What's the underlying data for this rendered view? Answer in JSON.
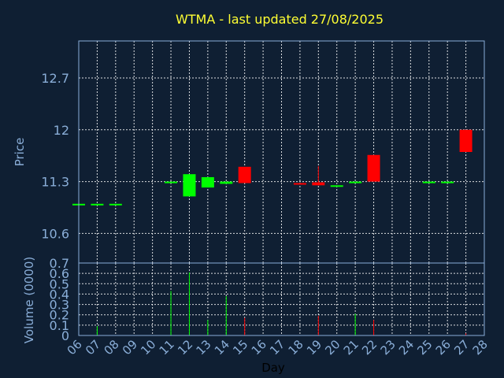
{
  "title": "WTMA - last updated 27/08/2025",
  "colors": {
    "background": "#0f1f33",
    "title": "#ffff33",
    "axis_text": "#8aaed8",
    "up": "#00ff00",
    "down": "#ff0000"
  },
  "chart_data": [
    {
      "type": "candlestick",
      "ylabel": "Price",
      "ylim": [
        10.2,
        13.2
      ],
      "yticks": [
        10.6,
        11.3,
        12,
        12.7
      ],
      "grid": true,
      "x_tick_labels": [
        "06",
        "07",
        "08",
        "09",
        "10",
        "11",
        "12",
        "13",
        "14",
        "15",
        "16",
        "17",
        "18",
        "19",
        "20",
        "21",
        "22",
        "23",
        "24",
        "25",
        "26",
        "27",
        "28"
      ],
      "candles": [
        {
          "day": "06",
          "open": 11.0,
          "high": 11.0,
          "low": 11.0,
          "close": 11.0
        },
        {
          "day": "07",
          "open": 11.0,
          "high": 11.0,
          "low": 11.0,
          "close": 11.0
        },
        {
          "day": "08",
          "open": 11.0,
          "high": 11.0,
          "low": 11.0,
          "close": 11.0
        },
        {
          "day": "11",
          "open": 11.3,
          "high": 11.3,
          "low": 11.3,
          "close": 11.3
        },
        {
          "day": "12",
          "open": 11.1,
          "high": 11.4,
          "low": 11.1,
          "close": 11.4
        },
        {
          "day": "13",
          "open": 11.22,
          "high": 11.36,
          "low": 11.22,
          "close": 11.36
        },
        {
          "day": "14",
          "open": 11.27,
          "high": 11.3,
          "low": 11.27,
          "close": 11.3
        },
        {
          "day": "15",
          "open": 11.5,
          "high": 11.5,
          "low": 11.28,
          "close": 11.28
        },
        {
          "day": "18",
          "open": 11.28,
          "high": 11.28,
          "low": 11.26,
          "close": 11.26
        },
        {
          "day": "19",
          "open": 11.29,
          "high": 11.51,
          "low": 11.25,
          "close": 11.25
        },
        {
          "day": "20",
          "open": 11.23,
          "high": 11.25,
          "low": 11.23,
          "close": 11.25
        },
        {
          "day": "21",
          "open": 11.29,
          "high": 11.3,
          "low": 11.29,
          "close": 11.3
        },
        {
          "day": "22",
          "open": 11.66,
          "high": 11.66,
          "low": 11.3,
          "close": 11.3
        },
        {
          "day": "25",
          "open": 11.3,
          "high": 11.3,
          "low": 11.3,
          "close": 11.3
        },
        {
          "day": "26",
          "open": 11.3,
          "high": 11.3,
          "low": 11.3,
          "close": 11.3
        },
        {
          "day": "27",
          "open": 12.0,
          "high": 12.0,
          "low": 11.7,
          "close": 11.7
        }
      ]
    },
    {
      "type": "bar",
      "ylabel": "Volume (0000)",
      "xlabel": "Day",
      "ylim": [
        0,
        0.7
      ],
      "yticks": [
        0,
        0.1,
        0.2,
        0.3,
        0.4,
        0.5,
        0.6,
        0.7
      ],
      "grid": true,
      "bars": [
        {
          "day": "07",
          "value": 0.09,
          "color": "up"
        },
        {
          "day": "11",
          "value": 0.43,
          "color": "up"
        },
        {
          "day": "12",
          "value": 0.61,
          "color": "up"
        },
        {
          "day": "13",
          "value": 0.15,
          "color": "up"
        },
        {
          "day": "14",
          "value": 0.38,
          "color": "up"
        },
        {
          "day": "15",
          "value": 0.17,
          "color": "down"
        },
        {
          "day": "19",
          "value": 0.19,
          "color": "down"
        },
        {
          "day": "21",
          "value": 0.21,
          "color": "up"
        },
        {
          "day": "22",
          "value": 0.15,
          "color": "down"
        },
        {
          "day": "27",
          "value": 0.02,
          "color": "down"
        }
      ]
    }
  ]
}
